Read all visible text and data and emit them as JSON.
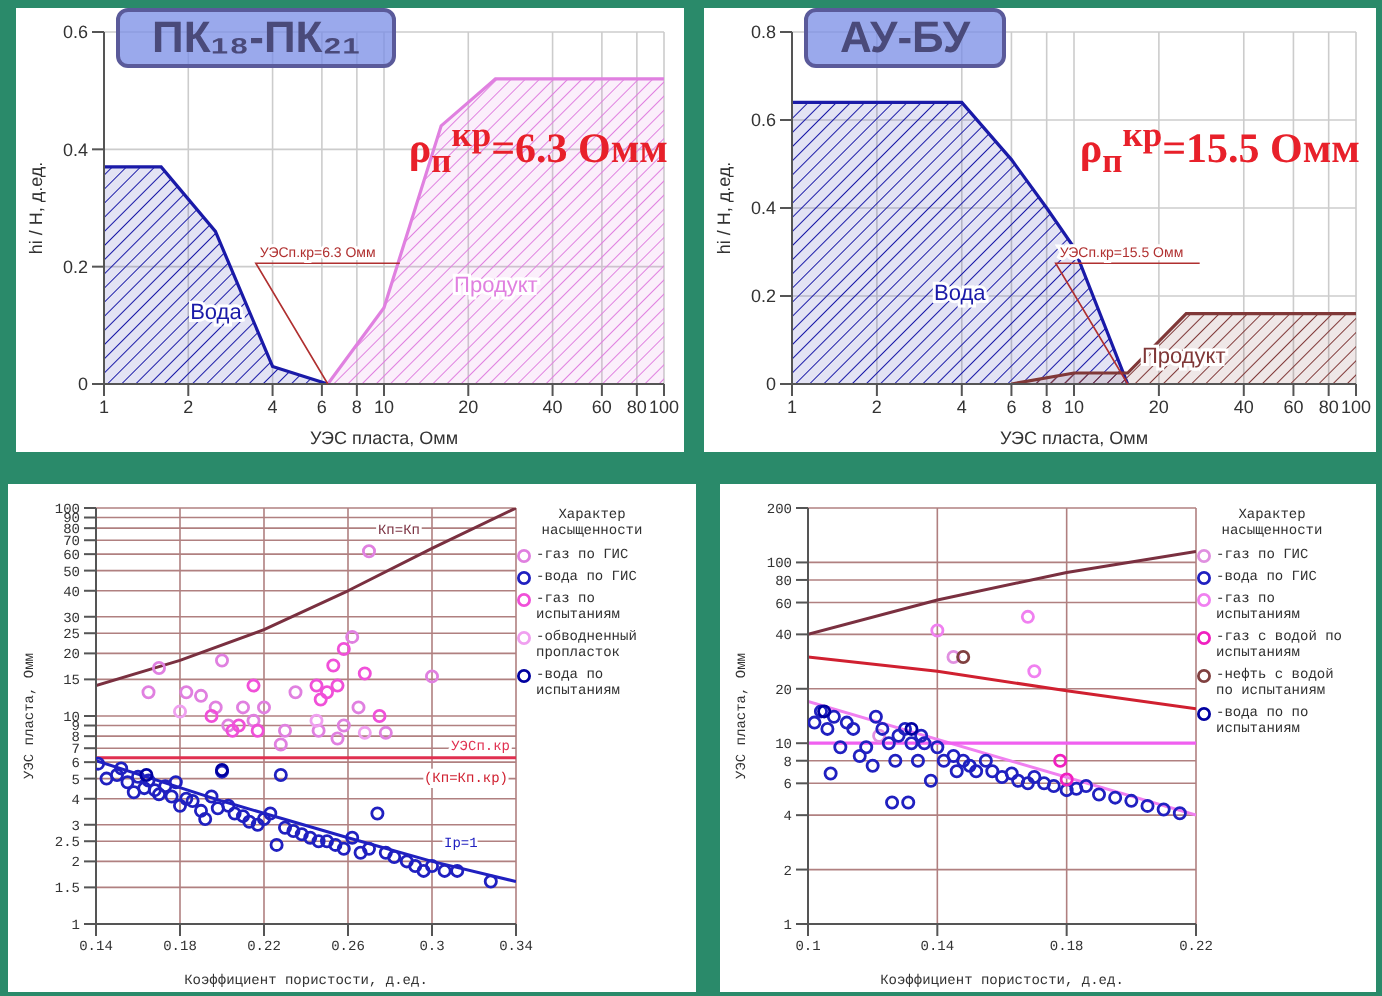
{
  "chart_data": [
    {
      "type": "area",
      "title": "ПК₁₈-ПК₂₁",
      "xlabel": "УЭС пласта, Омм",
      "ylabel": "hi / H, д.ед.",
      "log": "x",
      "xlim": [
        1,
        100
      ],
      "xticks": [
        1,
        2,
        4,
        6,
        8,
        10,
        20,
        40,
        60,
        80,
        100
      ],
      "ylim": [
        0,
        0.6
      ],
      "yticks": [
        0,
        0.2,
        0.4,
        0.6
      ],
      "grid": true,
      "series": [
        {
          "name": "Вода",
          "color": "#1a1aa8",
          "x": [
            1,
            1.6,
            2.5,
            4,
            6.3
          ],
          "values": [
            0.37,
            0.37,
            0.26,
            0.03,
            0
          ]
        },
        {
          "name": "Продукт",
          "color": "#e080e0",
          "x": [
            6.3,
            10,
            16,
            20,
            25,
            100
          ],
          "values": [
            0,
            0.13,
            0.44,
            0.48,
            0.52,
            0.52
          ]
        }
      ],
      "annotations": [
        "ρ$_{п}$$^{кр}$=6.3 Омм",
        {
          "text": "УЭСп.кр=6.3 Омм",
          "x": 6.3,
          "y": 0
        }
      ]
    },
    {
      "type": "area",
      "title": "АУ-БУ",
      "xlabel": "УЭС пласта, Омм",
      "ylabel": "hi / H, д.ед.",
      "log": "x",
      "xlim": [
        1,
        100
      ],
      "xticks": [
        1,
        2,
        4,
        6,
        8,
        10,
        20,
        40,
        60,
        80,
        100
      ],
      "ylim": [
        0,
        0.8
      ],
      "yticks": [
        0,
        0.2,
        0.4,
        0.6,
        0.8
      ],
      "grid": true,
      "series": [
        {
          "name": "Вода",
          "color": "#1a1aa8",
          "x": [
            1,
            4,
            6,
            8,
            10,
            15.5
          ],
          "values": [
            0.64,
            0.64,
            0.51,
            0.4,
            0.31,
            0
          ]
        },
        {
          "name": "Продукт",
          "color": "#803838",
          "x": [
            6,
            10,
            15.5,
            25,
            100
          ],
          "values": [
            0,
            0.025,
            0.025,
            0.16,
            0.16
          ]
        }
      ],
      "annotations": [
        "ρ$_{п}$$^{кр}$=15.5 Омм",
        {
          "text": "УЭСп.кр=15.5 Омм",
          "x": 15.5,
          "y": 0
        }
      ]
    },
    {
      "type": "scatter",
      "xlabel": "Коэффициент пористости, д.ед.",
      "ylabel": "УЭС пласта, Омм",
      "log": "y",
      "xlim": [
        0.14,
        0.34
      ],
      "xticks": [
        0.14,
        0.18,
        0.22,
        0.26,
        0.3,
        0.34
      ],
      "ylim": [
        1,
        100
      ],
      "yticks": [
        1,
        1.5,
        2,
        2.5,
        3,
        4,
        5,
        6,
        7,
        8,
        9,
        10,
        15,
        20,
        25,
        30,
        40,
        50,
        60,
        70,
        80,
        90,
        100
      ],
      "grid": true,
      "legend": "right",
      "legend_title": "Характер насыщенности",
      "series": [
        {
          "name": "-газ по ГИС",
          "color": "#e080e0",
          "marker": "circle",
          "x": [
            0.165,
            0.17,
            0.183,
            0.19,
            0.197,
            0.2,
            0.203,
            0.21,
            0.215,
            0.22,
            0.228,
            0.23,
            0.235,
            0.246,
            0.255,
            0.258,
            0.262,
            0.265,
            0.27,
            0.278,
            0.3
          ],
          "values": [
            13,
            17,
            13,
            12.5,
            11,
            18.5,
            9,
            11,
            9.5,
            11,
            7.3,
            8.5,
            13,
            8.5,
            7.8,
            9,
            24,
            11,
            62,
            8.3,
            15.5
          ]
        },
        {
          "name": "-вода по ГИС",
          "color": "#2020c0",
          "marker": "circle",
          "x": [
            0.141,
            0.145,
            0.15,
            0.152,
            0.155,
            0.158,
            0.16,
            0.163,
            0.165,
            0.168,
            0.17,
            0.173,
            0.176,
            0.178,
            0.18,
            0.183,
            0.186,
            0.19,
            0.192,
            0.195,
            0.198,
            0.2,
            0.203,
            0.206,
            0.21,
            0.213,
            0.217,
            0.22,
            0.223,
            0.226,
            0.228,
            0.23,
            0.234,
            0.238,
            0.242,
            0.246,
            0.25,
            0.254,
            0.258,
            0.262,
            0.266,
            0.27,
            0.274,
            0.278,
            0.282,
            0.288,
            0.292,
            0.296,
            0.3,
            0.306,
            0.312,
            0.328
          ],
          "values": [
            5.9,
            5.0,
            5.2,
            5.6,
            4.8,
            4.3,
            5.1,
            4.5,
            4.9,
            4.4,
            4.2,
            4.6,
            4.1,
            4.8,
            3.7,
            4.0,
            3.9,
            3.5,
            3.2,
            4.1,
            3.6,
            5.4,
            3.7,
            3.4,
            3.3,
            3.1,
            3.0,
            3.2,
            3.4,
            2.4,
            5.2,
            2.9,
            2.8,
            2.7,
            2.6,
            2.5,
            2.5,
            2.4,
            2.3,
            2.6,
            2.2,
            2.3,
            3.4,
            2.2,
            2.1,
            2.0,
            1.9,
            1.8,
            1.9,
            1.8,
            1.8,
            1.6
          ]
        },
        {
          "name": "-газ по испытаниям",
          "color": "#f050d8",
          "marker": "circle",
          "x": [
            0.195,
            0.205,
            0.208,
            0.215,
            0.217,
            0.245,
            0.247,
            0.25,
            0.253,
            0.255,
            0.258,
            0.268,
            0.275
          ],
          "values": [
            10,
            8.5,
            9,
            14,
            8.5,
            14,
            12,
            13,
            17.5,
            14,
            21,
            16,
            10
          ]
        },
        {
          "name": "-обводненный пропласток",
          "color": "#f0a0f0",
          "marker": "circle",
          "x": [
            0.18,
            0.245,
            0.268
          ],
          "values": [
            10.5,
            9.5,
            8.3
          ]
        },
        {
          "name": "-вода по испытаниям",
          "color": "#0000a0",
          "marker": "circle",
          "x": [
            0.2,
            0.164
          ],
          "values": [
            5.5,
            5.2
          ]
        },
        {
          "name": "Кп=Кп",
          "type": "line",
          "color": "#7a3040",
          "x": [
            0.14,
            0.18,
            0.22,
            0.26,
            0.3,
            0.34
          ],
          "values": [
            14,
            18.5,
            26,
            40,
            64,
            100
          ]
        },
        {
          "name": "Iр=1",
          "type": "line",
          "color": "#2020c0",
          "x": [
            0.14,
            0.2,
            0.26,
            0.3,
            0.34
          ],
          "values": [
            6.1,
            3.9,
            2.6,
            2.0,
            1.6
          ]
        }
      ],
      "ref_lines": [
        {
          "axis": "y",
          "value": 6.3,
          "label": "УЭСп.кр",
          "color": "#e03050"
        }
      ],
      "annotations": [
        {
          "text": "(Кп=Кп.кр)",
          "x": 0.34,
          "y": 6.3
        }
      ]
    },
    {
      "type": "scatter",
      "xlabel": "Коэффициент пористости, д.ед.",
      "ylabel": "УЭС пласта, Омм",
      "log": "y",
      "xlim": [
        0.1,
        0.22
      ],
      "xticks": [
        0.1,
        0.14,
        0.18,
        0.22
      ],
      "ylim": [
        1,
        200
      ],
      "yticks": [
        1,
        2,
        4,
        6,
        8,
        10,
        20,
        40,
        60,
        80,
        100,
        200
      ],
      "grid": true,
      "legend": "right",
      "legend_title": "Характер насыщенности",
      "series": [
        {
          "name": "-газ по ГИС",
          "color": "#e090e0",
          "marker": "circle",
          "x": [
            0.145,
            0.122
          ],
          "values": [
            30,
            11
          ]
        },
        {
          "name": "-вода по ГИС",
          "color": "#2020c0",
          "marker": "circle",
          "x": [
            0.102,
            0.104,
            0.106,
            0.107,
            0.108,
            0.11,
            0.112,
            0.114,
            0.116,
            0.118,
            0.12,
            0.121,
            0.123,
            0.125,
            0.126,
            0.127,
            0.128,
            0.13,
            0.131,
            0.132,
            0.134,
            0.135,
            0.136,
            0.138,
            0.14,
            0.142,
            0.145,
            0.146,
            0.148,
            0.15,
            0.152,
            0.155,
            0.157,
            0.16,
            0.163,
            0.165,
            0.168,
            0.17,
            0.173,
            0.176,
            0.18,
            0.183,
            0.186,
            0.19,
            0.195,
            0.2,
            0.205,
            0.21,
            0.215
          ],
          "values": [
            13,
            15,
            12,
            6.8,
            14,
            9.5,
            13,
            12,
            8.5,
            9.5,
            7.5,
            14,
            12,
            10,
            4.7,
            8,
            11,
            12,
            4.7,
            10,
            8,
            11,
            10,
            6.2,
            9.5,
            8,
            8.5,
            7,
            8,
            7.5,
            7,
            8,
            7,
            6.5,
            6.8,
            6.2,
            6,
            6.5,
            6,
            5.8,
            5.5,
            5.6,
            5.8,
            5.2,
            5,
            4.8,
            4.5,
            4.3,
            4.1
          ]
        },
        {
          "name": "-газ по испытаниям",
          "color": "#f080f0",
          "marker": "circle",
          "x": [
            0.14,
            0.168,
            0.17
          ],
          "values": [
            42,
            50,
            25
          ]
        },
        {
          "name": "-газ с водой по испытаниям",
          "color": "#f020c0",
          "marker": "circle",
          "x": [
            0.178,
            0.18
          ],
          "values": [
            8,
            6.3
          ]
        },
        {
          "name": "-нефть с водой по испытаниям",
          "color": "#804040",
          "marker": "circle",
          "x": [
            0.148
          ],
          "values": [
            30
          ]
        },
        {
          "name": "-вода по по испытаниям",
          "color": "#0000a0",
          "marker": "circle",
          "x": [
            0.105,
            0.132
          ],
          "values": [
            15,
            12
          ]
        },
        {
          "type": "line",
          "color": "#7a3040",
          "x": [
            0.1,
            0.14,
            0.18,
            0.22
          ],
          "values": [
            40,
            62,
            88,
            115
          ]
        },
        {
          "type": "line",
          "color": "#d02030",
          "x": [
            0.1,
            0.14,
            0.18,
            0.22
          ],
          "values": [
            30,
            25,
            19.5,
            15.5
          ]
        },
        {
          "type": "line",
          "color": "#f080f0",
          "x": [
            0.1,
            0.22
          ],
          "values": [
            17,
            4
          ]
        }
      ],
      "ref_lines": [
        {
          "axis": "y",
          "value": 10,
          "color": "#f060f0"
        }
      ]
    }
  ]
}
